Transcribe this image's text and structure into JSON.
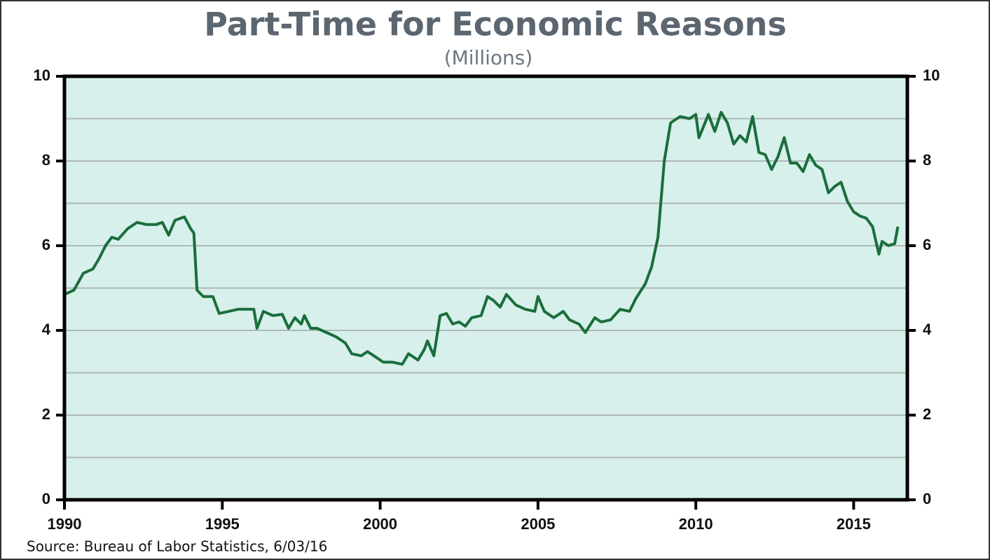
{
  "chart_data": {
    "type": "line",
    "title": "Part-Time for Economic Reasons",
    "subtitle": "(Millions)",
    "source": "Source:  Bureau of Labor Statistics, 6/03/16",
    "color": "#1a6e3c",
    "background": "#d7f0eb",
    "grid": true,
    "xlim": [
      1990,
      2016.7
    ],
    "xticks": [
      1990,
      1995,
      2000,
      2005,
      2010,
      2015
    ],
    "ylim": [
      0,
      10
    ],
    "yticks": [
      0,
      2,
      4,
      6,
      8,
      10
    ],
    "minor_yticks": [
      1,
      3,
      5,
      7,
      9
    ],
    "x": [
      1990.0,
      1990.3,
      1990.6,
      1990.9,
      1991.1,
      1991.3,
      1991.5,
      1991.7,
      1992.0,
      1992.3,
      1992.6,
      1992.9,
      1993.1,
      1993.3,
      1993.5,
      1993.8,
      1994.0,
      1994.1,
      1994.2,
      1994.4,
      1994.7,
      1994.9,
      1995.2,
      1995.5,
      1995.8,
      1996.0,
      1996.1,
      1996.3,
      1996.6,
      1996.9,
      1997.1,
      1997.3,
      1997.5,
      1997.6,
      1997.8,
      1998.0,
      1998.3,
      1998.6,
      1998.9,
      1999.1,
      1999.4,
      1999.6,
      1999.9,
      2000.1,
      2000.4,
      2000.7,
      2000.9,
      2001.2,
      2001.4,
      2001.5,
      2001.7,
      2001.9,
      2002.1,
      2002.3,
      2002.5,
      2002.7,
      2002.9,
      2003.2,
      2003.4,
      2003.6,
      2003.8,
      2004.0,
      2004.3,
      2004.6,
      2004.9,
      2005.0,
      2005.2,
      2005.5,
      2005.8,
      2006.0,
      2006.3,
      2006.5,
      2006.8,
      2007.0,
      2007.3,
      2007.6,
      2007.9,
      2008.1,
      2008.4,
      2008.6,
      2008.8,
      2009.0,
      2009.2,
      2009.5,
      2009.8,
      2010.0,
      2010.1,
      2010.4,
      2010.6,
      2010.8,
      2011.0,
      2011.2,
      2011.4,
      2011.6,
      2011.8,
      2012.0,
      2012.2,
      2012.4,
      2012.6,
      2012.8,
      2013.0,
      2013.2,
      2013.4,
      2013.6,
      2013.8,
      2014.0,
      2014.2,
      2014.4,
      2014.6,
      2014.8,
      2015.0,
      2015.2,
      2015.4,
      2015.6,
      2015.8,
      2015.9,
      2016.1,
      2016.3,
      2016.4
    ],
    "values": [
      4.85,
      4.95,
      5.35,
      5.45,
      5.7,
      6.0,
      6.2,
      6.15,
      6.4,
      6.55,
      6.5,
      6.5,
      6.55,
      6.25,
      6.6,
      6.68,
      6.4,
      6.3,
      4.95,
      4.8,
      4.8,
      4.4,
      4.45,
      4.5,
      4.5,
      4.5,
      4.05,
      4.45,
      4.35,
      4.38,
      4.05,
      4.3,
      4.15,
      4.35,
      4.05,
      4.05,
      3.95,
      3.85,
      3.7,
      3.45,
      3.4,
      3.5,
      3.35,
      3.25,
      3.25,
      3.2,
      3.45,
      3.3,
      3.55,
      3.75,
      3.4,
      4.35,
      4.4,
      4.15,
      4.2,
      4.1,
      4.3,
      4.35,
      4.8,
      4.7,
      4.55,
      4.85,
      4.6,
      4.5,
      4.45,
      4.8,
      4.45,
      4.3,
      4.45,
      4.25,
      4.15,
      3.95,
      4.3,
      4.2,
      4.25,
      4.5,
      4.45,
      4.75,
      5.1,
      5.5,
      6.2,
      8.0,
      8.9,
      9.05,
      9.0,
      9.1,
      8.55,
      9.1,
      8.7,
      9.15,
      8.9,
      8.4,
      8.6,
      8.45,
      9.05,
      8.2,
      8.15,
      7.8,
      8.1,
      8.55,
      7.95,
      7.95,
      7.75,
      8.15,
      7.9,
      7.8,
      7.25,
      7.4,
      7.5,
      7.05,
      6.8,
      6.7,
      6.65,
      6.45,
      5.8,
      6.1,
      6.0,
      6.05,
      6.45
    ]
  }
}
